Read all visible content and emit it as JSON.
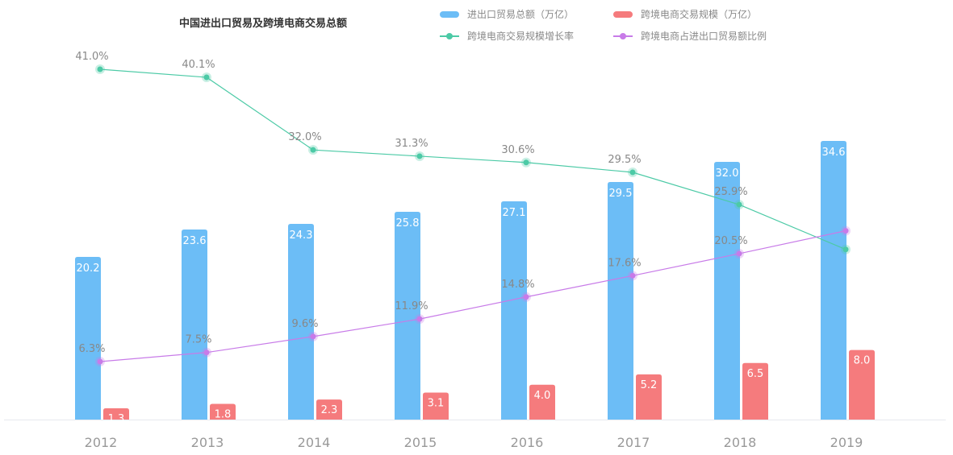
{
  "chart_data": {
    "type": "bar",
    "title": "中国进出口贸易及跨境电商交易总额",
    "categories": [
      "2012",
      "2013",
      "2014",
      "2015",
      "2016",
      "2017",
      "2018",
      "2019"
    ],
    "series": [
      {
        "name": "进出口贸易总额（万亿）",
        "type": "bar",
        "color": "#6cbdf6",
        "values": [
          20.2,
          23.6,
          24.3,
          25.8,
          27.1,
          29.5,
          32.0,
          34.6
        ],
        "labels": [
          "20.2",
          "23.6",
          "24.3",
          "25.8",
          "27.1",
          "29.5",
          "32.0",
          "34.6"
        ]
      },
      {
        "name": "跨境电商交易规模（万亿）",
        "type": "bar",
        "color": "#f57b7d",
        "values": [
          1.3,
          1.8,
          2.3,
          3.1,
          4.0,
          5.2,
          6.5,
          8.0
        ],
        "labels": [
          "1.3",
          "1.8",
          "2.3",
          "3.1",
          "4.0",
          "5.2",
          "6.5",
          "8.0"
        ]
      },
      {
        "name": "跨境电商交易规模增长率",
        "type": "line",
        "color": "#4ccaa6",
        "values": [
          41.0,
          40.1,
          32.0,
          31.3,
          30.6,
          29.5,
          25.9,
          20.9
        ],
        "labels": [
          "41.0%",
          "40.1%",
          "32.0%",
          "31.3%",
          "30.6%",
          "29.5%",
          "25.9%",
          null
        ]
      },
      {
        "name": "跨境电商占进出口贸易额比例",
        "type": "line",
        "color": "#c87be8",
        "values": [
          6.3,
          7.5,
          9.6,
          11.9,
          14.8,
          17.6,
          20.5,
          23.5
        ],
        "labels": [
          "6.3%",
          "7.5%",
          "9.6%",
          "11.9%",
          "14.8%",
          "17.6%",
          "20.5%",
          null
        ]
      }
    ],
    "legend": "top-right",
    "grid": false
  }
}
